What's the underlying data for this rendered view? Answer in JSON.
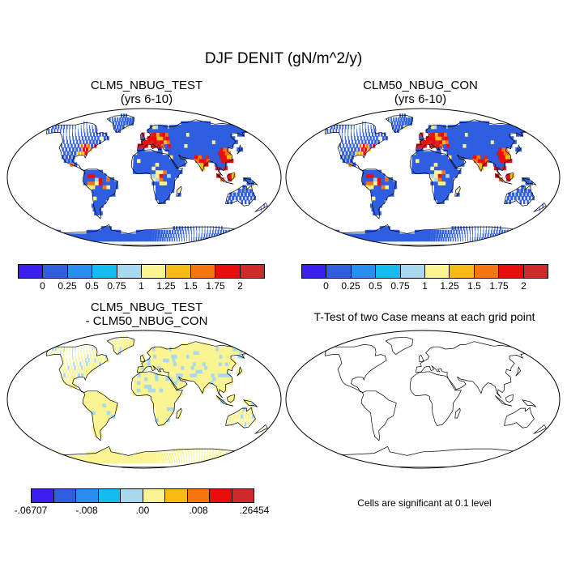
{
  "title": "DJF DENIT (gN/m^2/y)",
  "panels": [
    {
      "title_line1": "CLM5_NBUG_TEST",
      "title_line2": "(yrs 6-10)",
      "legend_labels": [
        "0",
        "0.25",
        "0.5",
        "0.75",
        "1",
        "1.25",
        "1.5",
        "1.75",
        "2"
      ]
    },
    {
      "title_line1": "CLM50_NBUG_CON",
      "title_line2": "(yrs 6-10)",
      "legend_labels": [
        "0",
        "0.25",
        "0.5",
        "0.75",
        "1",
        "1.25",
        "1.5",
        "1.75",
        "2"
      ]
    },
    {
      "title_line1": "CLM5_NBUG_TEST",
      "title_line2": "- CLM50_NBUG_CON",
      "legend_labels": [
        "-.06707",
        "-.008",
        ".00",
        ".008",
        ".26454"
      ]
    },
    {
      "title_line1": "T-Test of two Case means at each grid point",
      "footnote": "Cells are significant at 0.1 level"
    }
  ],
  "colors": {
    "absolute_scale": [
      "#3b1ef2",
      "#2f5ee0",
      "#2a8ef0",
      "#13bdee",
      "#a9d8ef",
      "#fbf493",
      "#f8bb13",
      "#f7750e",
      "#ec0c0c",
      "#cf2a2a"
    ],
    "difference_scale": [
      "#3b1ef2",
      "#2f5ee0",
      "#2a8ef0",
      "#13bdee",
      "#a9d8ef",
      "#fbf493",
      "#f8bb13",
      "#f7750e",
      "#ec0c0c",
      "#cf2a2a"
    ],
    "ocean": "#ffffff",
    "coastline": "#000000"
  }
}
